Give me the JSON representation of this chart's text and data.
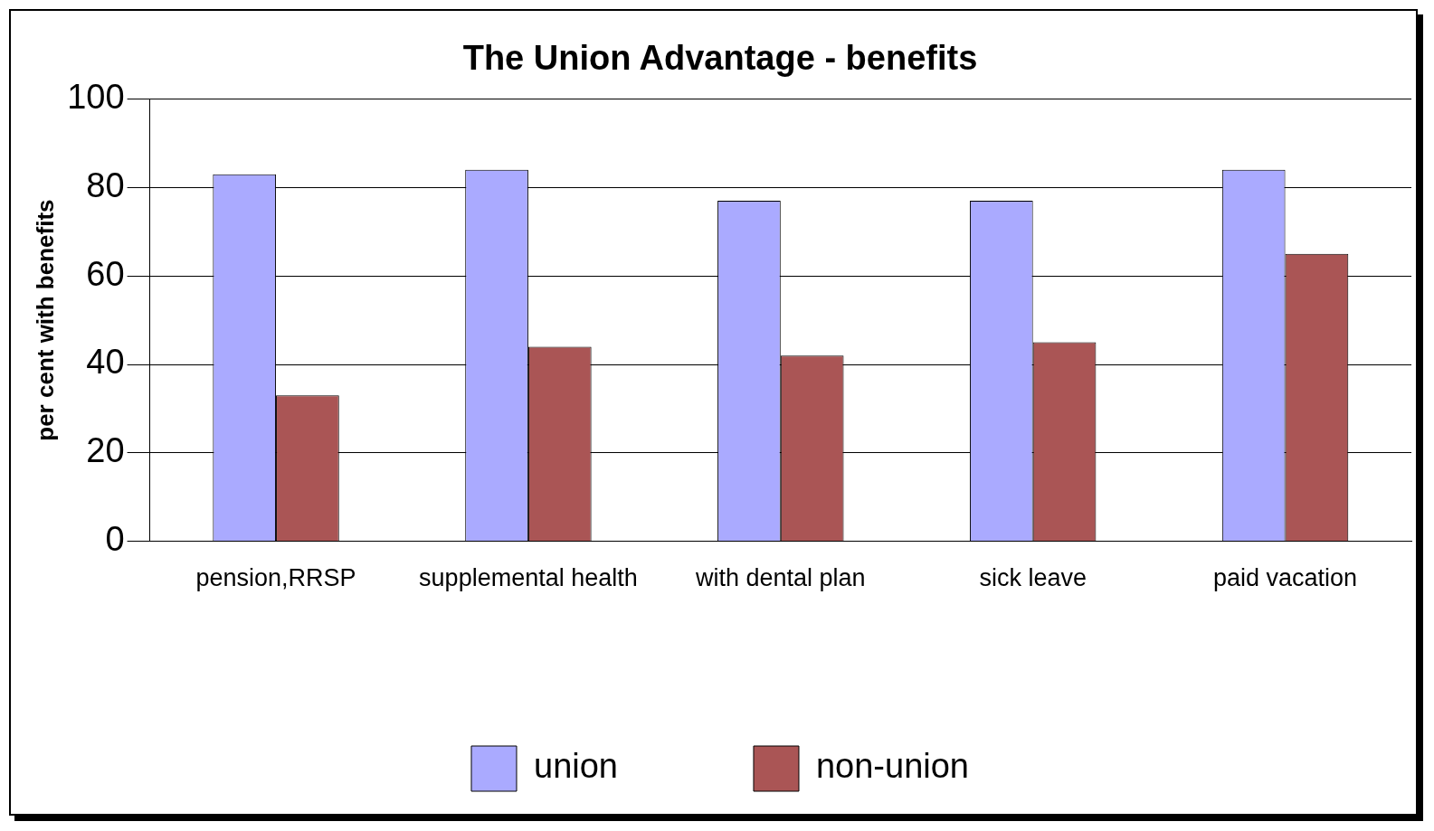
{
  "chart_data": {
    "type": "bar",
    "title": "The Union Advantage - benefits",
    "ylabel": "per cent with benefits",
    "categories": [
      "pension,RRSP",
      "supplemental health",
      "with dental plan",
      "sick leave",
      "paid vacation"
    ],
    "series": [
      {
        "name": "union",
        "color": "#aaaaff",
        "values": [
          83,
          84,
          77,
          77,
          84
        ]
      },
      {
        "name": "non-union",
        "color": "#aa5555",
        "values": [
          33,
          44,
          42,
          45,
          65
        ]
      }
    ],
    "ylim": [
      0,
      100
    ],
    "yticks": [
      0,
      20,
      40,
      60,
      80,
      100
    ],
    "grid": "y",
    "legend": "bottom"
  }
}
